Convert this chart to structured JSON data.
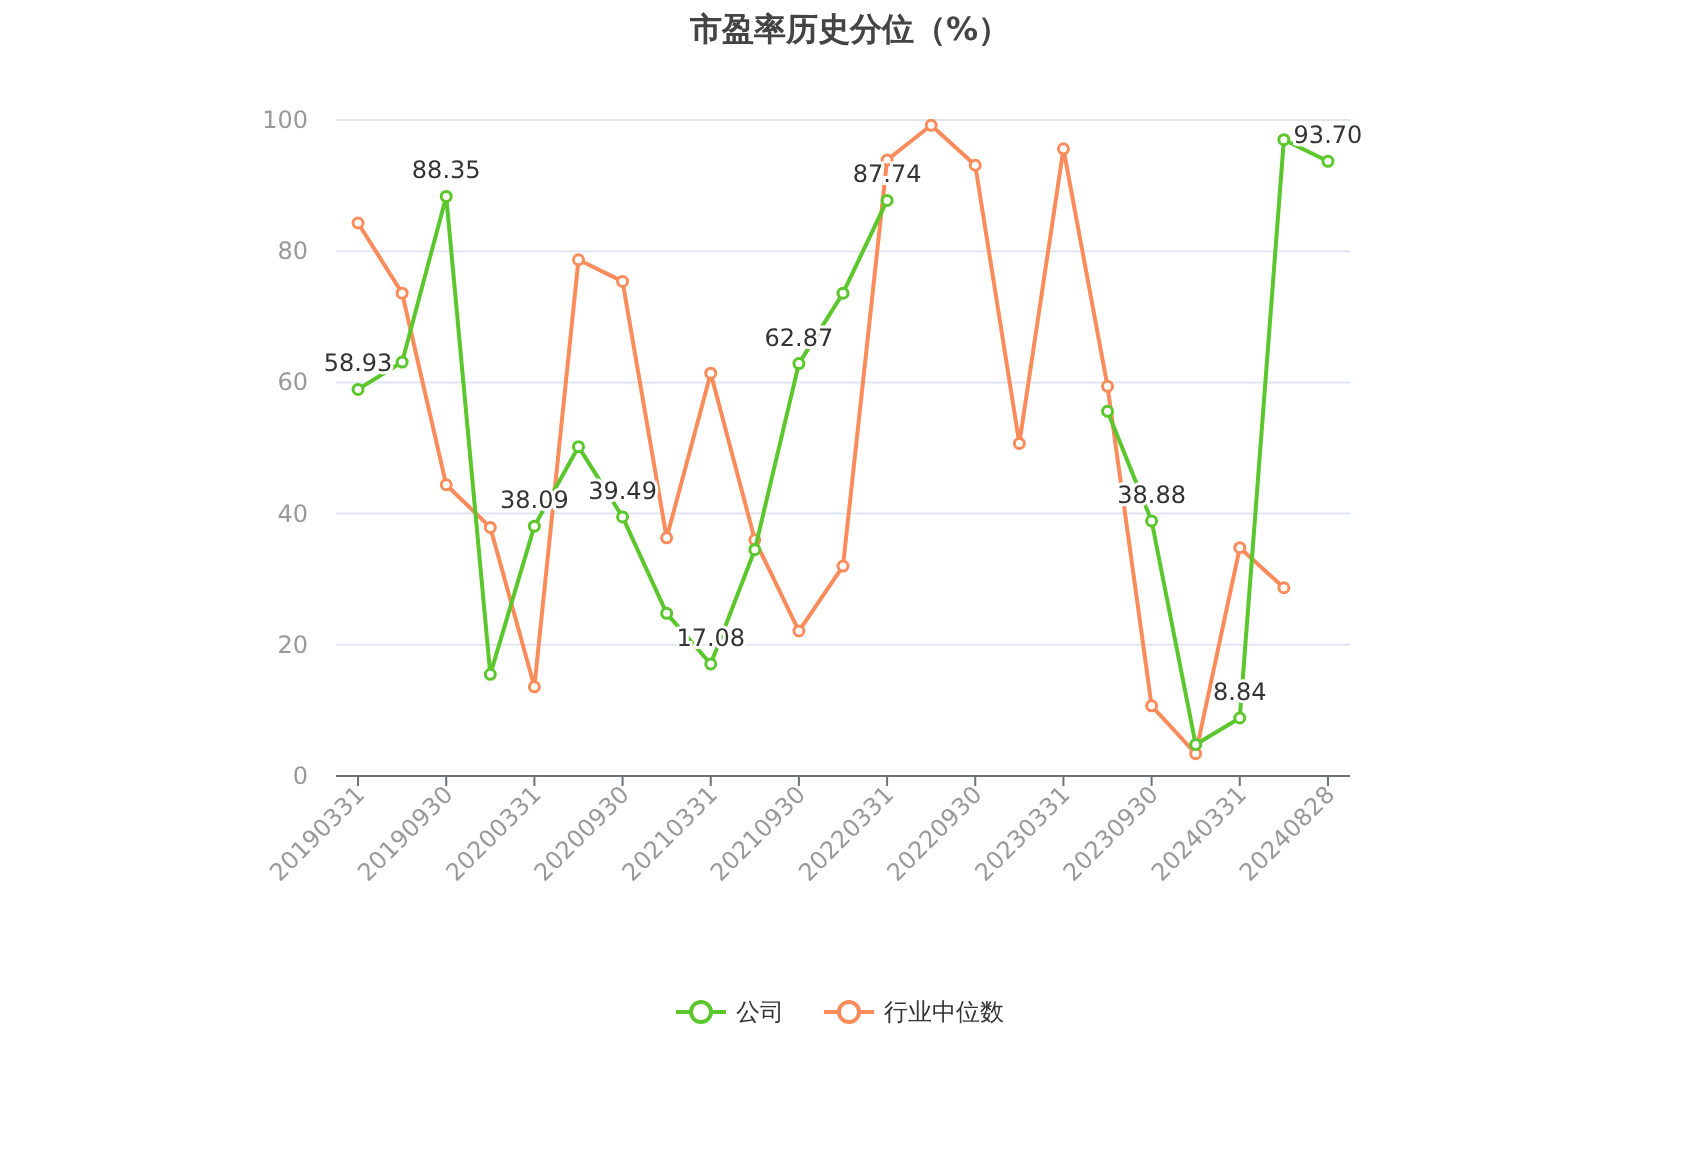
{
  "chart_data": {
    "type": "line",
    "title": "市盈率历史分位（%）",
    "categories": [
      "20190331",
      null,
      "20190930",
      null,
      "20200331",
      null,
      "20200930",
      null,
      "20210331",
      null,
      "20210930",
      null,
      "20220331",
      null,
      "20220930",
      null,
      "20230331",
      null,
      "20230930",
      null,
      "20240331",
      null,
      "20240828"
    ],
    "series": [
      {
        "name": "公司",
        "color": "#5bc72c",
        "values": [
          58.93,
          63.1,
          88.35,
          15.5,
          38.09,
          50.2,
          39.49,
          24.8,
          17.08,
          34.5,
          62.87,
          73.6,
          87.74,
          null,
          null,
          null,
          null,
          55.6,
          38.88,
          4.8,
          8.84,
          97.0,
          93.7
        ],
        "value_labels": [
          "58.93",
          null,
          "88.35",
          null,
          "38.09",
          null,
          "39.49",
          null,
          "17.08",
          null,
          "62.87",
          null,
          "87.74",
          null,
          null,
          null,
          null,
          null,
          "38.88",
          null,
          "8.84",
          null,
          "93.70"
        ]
      },
      {
        "name": "行业中位数",
        "color": "#fa8c5c",
        "values": [
          84.3,
          73.6,
          44.4,
          37.9,
          13.6,
          78.7,
          75.4,
          36.3,
          61.4,
          36.0,
          22.1,
          32.0,
          93.9,
          99.2,
          93.1,
          50.7,
          95.6,
          59.4,
          10.7,
          3.4,
          34.8,
          28.7,
          null
        ]
      }
    ],
    "ylim": [
      0,
      100
    ],
    "yticks": [
      0,
      20,
      40,
      60,
      80,
      100
    ],
    "grid": "y",
    "legend": "bottom",
    "marker": "circle",
    "line_style": "solid"
  }
}
